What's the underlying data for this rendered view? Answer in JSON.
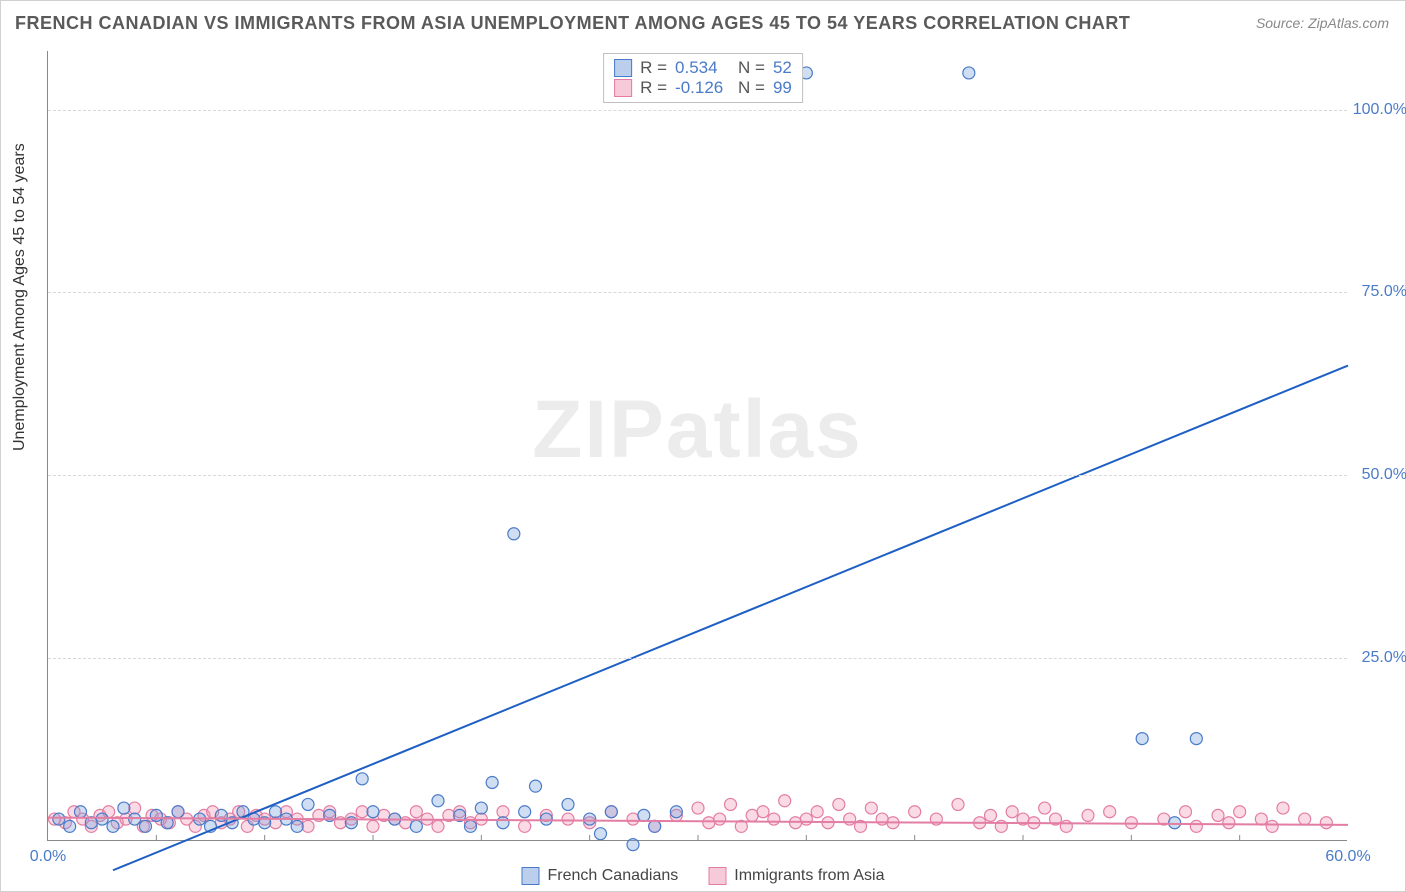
{
  "title": "FRENCH CANADIAN VS IMMIGRANTS FROM ASIA UNEMPLOYMENT AMONG AGES 45 TO 54 YEARS CORRELATION CHART",
  "source": "Source: ZipAtlas.com",
  "ylabel": "Unemployment Among Ages 45 to 54 years",
  "watermark": "ZIPatlas",
  "chart": {
    "type": "scatter",
    "xlim": [
      0,
      60
    ],
    "ylim": [
      0,
      108
    ],
    "x_ticks": [
      0,
      60
    ],
    "x_tick_labels": [
      "0.0%",
      "60.0%"
    ],
    "x_minor_ticks": [
      5,
      10,
      15,
      20,
      25,
      30,
      35,
      40,
      45,
      50,
      55
    ],
    "y_ticks": [
      25,
      50,
      75,
      100
    ],
    "y_tick_labels": [
      "25.0%",
      "50.0%",
      "75.0%",
      "100.0%"
    ],
    "background_color": "#ffffff",
    "grid_color": "#d8d8d8",
    "axis_color": "#888888",
    "tick_label_color": "#4a7bc8",
    "marker_radius": 6,
    "marker_stroke_width": 1.2,
    "trend_line_width": 2,
    "series": [
      {
        "name": "French Canadians",
        "color_fill": "rgba(120,160,220,0.35)",
        "color_stroke": "#4a7bc8",
        "trend_color": "#1e5fc4",
        "R": "0.534",
        "N": "52",
        "trend": {
          "x1": 3,
          "y1": -4,
          "x2": 60,
          "y2": 65
        },
        "points": [
          [
            0.5,
            3
          ],
          [
            1,
            2
          ],
          [
            1.5,
            4
          ],
          [
            2,
            2.5
          ],
          [
            2.5,
            3
          ],
          [
            3,
            2
          ],
          [
            3.5,
            4.5
          ],
          [
            4,
            3
          ],
          [
            4.5,
            2
          ],
          [
            5,
            3.5
          ],
          [
            5.5,
            2.5
          ],
          [
            6,
            4
          ],
          [
            7,
            3
          ],
          [
            7.5,
            2
          ],
          [
            8,
            3.5
          ],
          [
            8.5,
            2.5
          ],
          [
            9,
            4
          ],
          [
            9.5,
            3
          ],
          [
            10,
            2.5
          ],
          [
            10.5,
            4
          ],
          [
            11,
            3
          ],
          [
            11.5,
            2
          ],
          [
            12,
            5
          ],
          [
            13,
            3.5
          ],
          [
            14,
            2.5
          ],
          [
            14.5,
            8.5
          ],
          [
            15,
            4
          ],
          [
            16,
            3
          ],
          [
            17,
            2
          ],
          [
            18,
            5.5
          ],
          [
            19,
            3.5
          ],
          [
            19.5,
            2
          ],
          [
            20,
            4.5
          ],
          [
            20.5,
            8
          ],
          [
            21,
            2.5
          ],
          [
            22,
            4
          ],
          [
            22.5,
            7.5
          ],
          [
            23,
            3
          ],
          [
            24,
            5
          ],
          [
            25,
            3
          ],
          [
            25.5,
            1
          ],
          [
            26,
            4
          ],
          [
            27,
            -0.5
          ],
          [
            27.5,
            3.5
          ],
          [
            28,
            2
          ],
          [
            29,
            4
          ],
          [
            21.5,
            42
          ],
          [
            35,
            105
          ],
          [
            42.5,
            105
          ],
          [
            50.5,
            14
          ],
          [
            53,
            14
          ],
          [
            52,
            2.5
          ]
        ]
      },
      {
        "name": "Immigrants from Asia",
        "color_fill": "rgba(240,150,180,0.35)",
        "color_stroke": "#e37da3",
        "trend_color": "#e37da3",
        "R": "-0.126",
        "N": "99",
        "trend": {
          "x1": 0,
          "y1": 3.2,
          "x2": 60,
          "y2": 2.2
        },
        "points": [
          [
            0.3,
            3
          ],
          [
            0.8,
            2.5
          ],
          [
            1.2,
            4
          ],
          [
            1.6,
            3
          ],
          [
            2,
            2
          ],
          [
            2.4,
            3.5
          ],
          [
            2.8,
            4
          ],
          [
            3.2,
            2.5
          ],
          [
            3.6,
            3
          ],
          [
            4,
            4.5
          ],
          [
            4.4,
            2
          ],
          [
            4.8,
            3.5
          ],
          [
            5.2,
            3
          ],
          [
            5.6,
            2.5
          ],
          [
            6,
            4
          ],
          [
            6.4,
            3
          ],
          [
            6.8,
            2
          ],
          [
            7.2,
            3.5
          ],
          [
            7.6,
            4
          ],
          [
            8,
            2.5
          ],
          [
            8.4,
            3
          ],
          [
            8.8,
            4
          ],
          [
            9.2,
            2
          ],
          [
            9.6,
            3.5
          ],
          [
            10,
            3
          ],
          [
            10.5,
            2.5
          ],
          [
            11,
            4
          ],
          [
            11.5,
            3
          ],
          [
            12,
            2
          ],
          [
            12.5,
            3.5
          ],
          [
            13,
            4
          ],
          [
            13.5,
            2.5
          ],
          [
            14,
            3
          ],
          [
            14.5,
            4
          ],
          [
            15,
            2
          ],
          [
            15.5,
            3.5
          ],
          [
            16,
            3
          ],
          [
            16.5,
            2.5
          ],
          [
            17,
            4
          ],
          [
            17.5,
            3
          ],
          [
            18,
            2
          ],
          [
            18.5,
            3.5
          ],
          [
            19,
            4
          ],
          [
            19.5,
            2.5
          ],
          [
            20,
            3
          ],
          [
            21,
            4
          ],
          [
            22,
            2
          ],
          [
            23,
            3.5
          ],
          [
            24,
            3
          ],
          [
            25,
            2.5
          ],
          [
            26,
            4
          ],
          [
            27,
            3
          ],
          [
            28,
            2
          ],
          [
            29,
            3.5
          ],
          [
            30,
            4.5
          ],
          [
            30.5,
            2.5
          ],
          [
            31,
            3
          ],
          [
            31.5,
            5
          ],
          [
            32,
            2
          ],
          [
            32.5,
            3.5
          ],
          [
            33,
            4
          ],
          [
            33.5,
            3
          ],
          [
            34,
            5.5
          ],
          [
            34.5,
            2.5
          ],
          [
            35,
            3
          ],
          [
            35.5,
            4
          ],
          [
            36,
            2.5
          ],
          [
            36.5,
            5
          ],
          [
            37,
            3
          ],
          [
            37.5,
            2
          ],
          [
            38,
            4.5
          ],
          [
            38.5,
            3
          ],
          [
            39,
            2.5
          ],
          [
            40,
            4
          ],
          [
            41,
            3
          ],
          [
            42,
            5
          ],
          [
            43,
            2.5
          ],
          [
            43.5,
            3.5
          ],
          [
            44,
            2
          ],
          [
            44.5,
            4
          ],
          [
            45,
            3
          ],
          [
            45.5,
            2.5
          ],
          [
            46,
            4.5
          ],
          [
            46.5,
            3
          ],
          [
            47,
            2
          ],
          [
            48,
            3.5
          ],
          [
            49,
            4
          ],
          [
            50,
            2.5
          ],
          [
            51.5,
            3
          ],
          [
            52.5,
            4
          ],
          [
            53,
            2
          ],
          [
            54,
            3.5
          ],
          [
            54.5,
            2.5
          ],
          [
            55,
            4
          ],
          [
            56,
            3
          ],
          [
            56.5,
            2
          ],
          [
            57,
            4.5
          ],
          [
            58,
            3
          ],
          [
            59,
            2.5
          ]
        ]
      }
    ]
  },
  "legend": [
    {
      "label": "French Canadians",
      "fill": "rgba(120,160,220,0.5)",
      "stroke": "#4a7bc8"
    },
    {
      "label": "Immigrants from Asia",
      "fill": "rgba(240,150,180,0.5)",
      "stroke": "#e37da3"
    }
  ],
  "stats_box": {
    "rows": [
      {
        "swatch_fill": "rgba(120,160,220,0.5)",
        "swatch_stroke": "#4a7bc8",
        "r_label": "R =",
        "r_value": "0.534",
        "n_label": "N =",
        "n_value": "52",
        "value_color": "#4a7bc8"
      },
      {
        "swatch_fill": "rgba(240,150,180,0.5)",
        "swatch_stroke": "#e37da3",
        "r_label": "R =",
        "r_value": "-0.126",
        "n_label": "N =",
        "n_value": "99",
        "value_color": "#4a7bc8"
      }
    ]
  }
}
